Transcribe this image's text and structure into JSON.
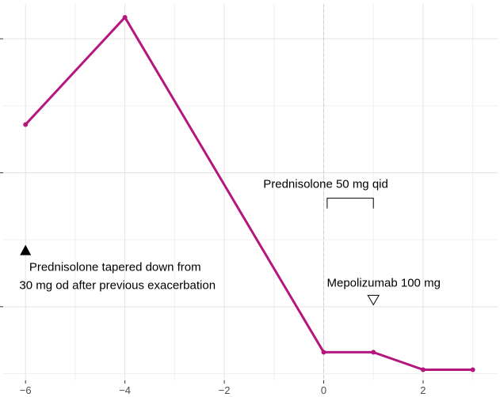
{
  "chart_data": {
    "type": "line",
    "x": [
      -6,
      -4,
      0,
      1,
      2,
      3
    ],
    "series": [
      {
        "values": [
          18.6,
          26.6,
          1.6,
          1.6,
          0.3,
          0.3
        ],
        "color": "#b5177f"
      }
    ],
    "xlim": [
      -6.45,
      3.5
    ],
    "ylim": [
      -0.5,
      27.6
    ],
    "x_ticks": [
      -6,
      -4,
      -2,
      0,
      2
    ],
    "x_tick_labels": [
      "−6",
      "−4",
      "−2",
      "0",
      "2"
    ],
    "y_ticks": [
      5,
      15,
      25
    ],
    "grid": true,
    "vline_x": 0,
    "title": "",
    "xlabel": "",
    "ylabel": "",
    "annotations": {
      "prednisolone_taper": {
        "line1": "Prednisolone tapered down from",
        "line2": "30 mg od after previous exacerbation",
        "marker": "filled-up-triangle",
        "x": -6,
        "y": 9.2
      },
      "prednisolone_50": {
        "text": "Prednisolone 50 mg qid",
        "bracket_x": [
          0.07,
          1.0
        ],
        "y": 13.1
      },
      "mepolizumab": {
        "text": "Mepolizumab 100 mg",
        "marker": "open-down-triangle",
        "x": 1,
        "y": 5.5
      }
    }
  }
}
